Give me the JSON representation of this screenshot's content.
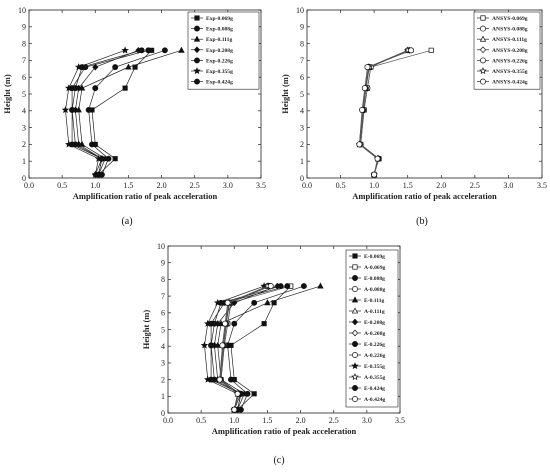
{
  "panel_captions": [
    "(a)",
    "(b)",
    "(c)"
  ],
  "chart_data": [
    {
      "type": "line",
      "panel": "(a)",
      "xlabel": "Amplification ratio of peak acceleration",
      "ylabel": "Height (m)",
      "xlim": [
        0.0,
        3.5
      ],
      "ylim": [
        0,
        10
      ],
      "xticks": [
        "0.0",
        "0.5",
        "1.0",
        "1.5",
        "2.0",
        "2.5",
        "3.0",
        "3.5"
      ],
      "yticks": [
        "0",
        "1",
        "2",
        "3",
        "4",
        "5",
        "6",
        "7",
        "8",
        "9",
        "10"
      ],
      "grid": false,
      "legend_position": "top-right",
      "y": [
        0.2,
        1.15,
        2.0,
        4.05,
        5.35,
        6.6,
        7.6
      ],
      "series": [
        {
          "name": "Exp-0.069g",
          "marker": "square",
          "fill": "filled",
          "x": [
            1.05,
            1.3,
            1.0,
            0.95,
            1.45,
            1.6,
            1.85
          ]
        },
        {
          "name": "Exp-0.088g",
          "marker": "circle",
          "fill": "filled",
          "x": [
            1.1,
            1.2,
            0.95,
            0.9,
            1.0,
            1.3,
            2.05
          ]
        },
        {
          "name": "Exp-0.111g",
          "marker": "triangle",
          "fill": "filled",
          "x": [
            1.05,
            1.15,
            0.8,
            0.75,
            0.8,
            1.5,
            2.3
          ]
        },
        {
          "name": "Exp-0.208g",
          "marker": "diamond",
          "fill": "filled",
          "x": [
            1.0,
            1.1,
            0.75,
            0.7,
            0.75,
            1.0,
            1.65
          ]
        },
        {
          "name": "Exp-0.226g",
          "marker": "circle",
          "fill": "filled",
          "x": [
            1.05,
            1.1,
            0.7,
            0.65,
            0.65,
            0.85,
            1.8
          ]
        },
        {
          "name": "Exp-0.355g",
          "marker": "star",
          "fill": "filled",
          "x": [
            1.0,
            1.05,
            0.6,
            0.55,
            0.6,
            0.75,
            1.45
          ]
        },
        {
          "name": "Exp-0.424g",
          "marker": "circle",
          "fill": "filled",
          "x": [
            1.05,
            1.1,
            0.65,
            0.65,
            0.7,
            0.8,
            1.7
          ]
        }
      ]
    },
    {
      "type": "line",
      "panel": "(b)",
      "xlabel": "Amplification ratio of peak acceleration",
      "ylabel": "Height (m)",
      "xlim": [
        0.0,
        3.5
      ],
      "ylim": [
        0,
        10
      ],
      "xticks": [
        "0.0",
        "0.5",
        "1.0",
        "1.5",
        "2.0",
        "2.5",
        "3.0",
        "3.5"
      ],
      "yticks": [
        "0",
        "1",
        "2",
        "3",
        "4",
        "5",
        "6",
        "7",
        "8",
        "9",
        "10"
      ],
      "grid": false,
      "legend_position": "top-right",
      "y": [
        0.2,
        1.15,
        2.0,
        4.05,
        5.35,
        6.6,
        7.6
      ],
      "series": [
        {
          "name": "ANSYS-0.069g",
          "marker": "square",
          "fill": "open",
          "x": [
            1.0,
            1.07,
            0.8,
            0.85,
            0.9,
            0.95,
            1.85
          ]
        },
        {
          "name": "ANSYS-0.088g",
          "marker": "circle",
          "fill": "open",
          "x": [
            1.0,
            1.07,
            0.8,
            0.85,
            0.9,
            0.95,
            1.5
          ]
        },
        {
          "name": "ANSYS-0.111g",
          "marker": "triangle",
          "fill": "open",
          "x": [
            1.0,
            1.07,
            0.79,
            0.84,
            0.88,
            0.93,
            1.52
          ]
        },
        {
          "name": "ANSYS-0.208g",
          "marker": "diamond",
          "fill": "open",
          "x": [
            1.0,
            1.06,
            0.79,
            0.84,
            0.88,
            0.92,
            1.53
          ]
        },
        {
          "name": "ANSYS-0.226g",
          "marker": "circle",
          "fill": "open",
          "x": [
            1.0,
            1.06,
            0.78,
            0.83,
            0.87,
            0.92,
            1.55
          ]
        },
        {
          "name": "ANSYS-0.355g",
          "marker": "star",
          "fill": "open",
          "x": [
            1.0,
            1.05,
            0.78,
            0.83,
            0.87,
            0.91,
            1.5
          ]
        },
        {
          "name": "ANSYS-0.424g",
          "marker": "circle",
          "fill": "open",
          "x": [
            1.0,
            1.05,
            0.78,
            0.82,
            0.86,
            0.9,
            1.55
          ]
        }
      ]
    },
    {
      "type": "line",
      "panel": "(c)",
      "xlabel": "Amplification ratio of peak acceleration",
      "ylabel": "Height (m)",
      "xlim": [
        0.0,
        3.5
      ],
      "ylim": [
        0,
        10
      ],
      "xticks": [
        "0.0",
        "0.5",
        "1.0",
        "1.5",
        "2.0",
        "2.5",
        "3.0",
        "3.5"
      ],
      "yticks": [
        "0",
        "1",
        "2",
        "3",
        "4",
        "5",
        "6",
        "7",
        "8",
        "9",
        "10"
      ],
      "grid": false,
      "legend_position": "top-right",
      "y": [
        0.2,
        1.15,
        2.0,
        4.05,
        5.35,
        6.6,
        7.6
      ],
      "series": [
        {
          "name": "E-0.069g",
          "marker": "square",
          "fill": "filled",
          "x": [
            1.05,
            1.3,
            1.0,
            0.95,
            1.45,
            1.6,
            1.85
          ]
        },
        {
          "name": "A-0.069g",
          "marker": "square",
          "fill": "open",
          "x": [
            1.0,
            1.07,
            0.8,
            0.85,
            0.9,
            0.95,
            1.85
          ]
        },
        {
          "name": "E-0.088g",
          "marker": "circle",
          "fill": "filled",
          "x": [
            1.1,
            1.2,
            0.95,
            0.9,
            1.0,
            1.3,
            2.05
          ]
        },
        {
          "name": "A-0.088g",
          "marker": "circle",
          "fill": "open",
          "x": [
            1.0,
            1.07,
            0.8,
            0.85,
            0.9,
            0.95,
            1.5
          ]
        },
        {
          "name": "E-0.111g",
          "marker": "triangle",
          "fill": "filled",
          "x": [
            1.05,
            1.15,
            0.8,
            0.75,
            0.8,
            1.5,
            2.3
          ]
        },
        {
          "name": "A-0.111g",
          "marker": "triangle",
          "fill": "open",
          "x": [
            1.0,
            1.07,
            0.79,
            0.84,
            0.88,
            0.93,
            1.52
          ]
        },
        {
          "name": "E-0.208g",
          "marker": "diamond",
          "fill": "filled",
          "x": [
            1.0,
            1.1,
            0.75,
            0.7,
            0.75,
            1.0,
            1.65
          ]
        },
        {
          "name": "A-0.208g",
          "marker": "diamond",
          "fill": "open",
          "x": [
            1.0,
            1.06,
            0.79,
            0.84,
            0.88,
            0.92,
            1.53
          ]
        },
        {
          "name": "E-0.226g",
          "marker": "circle",
          "fill": "filled",
          "x": [
            1.05,
            1.1,
            0.7,
            0.65,
            0.65,
            0.85,
            1.8
          ]
        },
        {
          "name": "A-0.226g",
          "marker": "circle",
          "fill": "open",
          "x": [
            1.0,
            1.06,
            0.78,
            0.83,
            0.87,
            0.92,
            1.55
          ]
        },
        {
          "name": "E-0.355g",
          "marker": "star",
          "fill": "filled",
          "x": [
            1.0,
            1.05,
            0.6,
            0.55,
            0.6,
            0.75,
            1.45
          ]
        },
        {
          "name": "A-0.355g",
          "marker": "star",
          "fill": "open",
          "x": [
            1.0,
            1.05,
            0.78,
            0.83,
            0.87,
            0.91,
            1.5
          ]
        },
        {
          "name": "E-0.424g",
          "marker": "circle",
          "fill": "filled",
          "x": [
            1.05,
            1.1,
            0.65,
            0.65,
            0.7,
            0.8,
            1.7
          ]
        },
        {
          "name": "A-0.424g",
          "marker": "circle",
          "fill": "open",
          "x": [
            1.0,
            1.05,
            0.78,
            0.82,
            0.86,
            0.9,
            1.55
          ]
        }
      ]
    }
  ]
}
